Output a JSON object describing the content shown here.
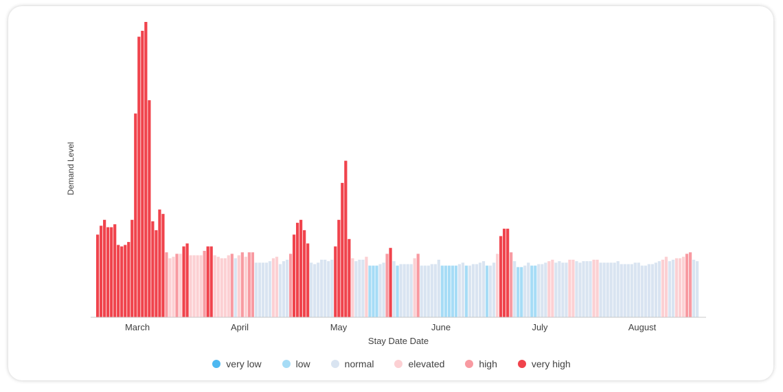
{
  "chart_data": {
    "type": "bar",
    "title": "",
    "xlabel": "Stay Date Date",
    "ylabel": "Demand Level",
    "x_tick_labels": [
      "March",
      "April",
      "May",
      "June",
      "July",
      "August"
    ],
    "ylim": [
      0,
      100
    ],
    "grid": false,
    "legend_position": "bottom",
    "series": [
      {
        "name": "very low",
        "color": "#4db8f0"
      },
      {
        "name": "low",
        "color": "#a6dcf6"
      },
      {
        "name": "normal",
        "color": "#d9e4f1"
      },
      {
        "name": "elevated",
        "color": "#fcd0d3"
      },
      {
        "name": "high",
        "color": "#f89aa1"
      },
      {
        "name": "very high",
        "color": "#f0434c"
      }
    ],
    "bars": [
      {
        "v": 28,
        "level": "very high"
      },
      {
        "v": 31,
        "level": "very high"
      },
      {
        "v": 33,
        "level": "very high"
      },
      {
        "v": 30.5,
        "level": "very high"
      },
      {
        "v": 30.5,
        "level": "very high"
      },
      {
        "v": 31.5,
        "level": "very high"
      },
      {
        "v": 24.5,
        "level": "very high"
      },
      {
        "v": 24,
        "level": "very high"
      },
      {
        "v": 24.5,
        "level": "very high"
      },
      {
        "v": 25.5,
        "level": "very high"
      },
      {
        "v": 33,
        "level": "very high"
      },
      {
        "v": 69,
        "level": "very high"
      },
      {
        "v": 95,
        "level": "very high"
      },
      {
        "v": 97,
        "level": "very high"
      },
      {
        "v": 100,
        "level": "very high"
      },
      {
        "v": 73.5,
        "level": "very high"
      },
      {
        "v": 32.5,
        "level": "very high"
      },
      {
        "v": 29.5,
        "level": "very high"
      },
      {
        "v": 36.5,
        "level": "very high"
      },
      {
        "v": 35,
        "level": "very high"
      },
      {
        "v": 22,
        "level": "high"
      },
      {
        "v": 20,
        "level": "elevated"
      },
      {
        "v": 20.5,
        "level": "elevated"
      },
      {
        "v": 21.5,
        "level": "high"
      },
      {
        "v": 21.5,
        "level": "elevated"
      },
      {
        "v": 24,
        "level": "very high"
      },
      {
        "v": 25,
        "level": "very high"
      },
      {
        "v": 21,
        "level": "elevated"
      },
      {
        "v": 21,
        "level": "elevated"
      },
      {
        "v": 21,
        "level": "elevated"
      },
      {
        "v": 21,
        "level": "elevated"
      },
      {
        "v": 22.5,
        "level": "high"
      },
      {
        "v": 24,
        "level": "very high"
      },
      {
        "v": 24,
        "level": "very high"
      },
      {
        "v": 21,
        "level": "elevated"
      },
      {
        "v": 20.5,
        "level": "elevated"
      },
      {
        "v": 20,
        "level": "elevated"
      },
      {
        "v": 20,
        "level": "elevated"
      },
      {
        "v": 21,
        "level": "elevated"
      },
      {
        "v": 21.5,
        "level": "high"
      },
      {
        "v": 20,
        "level": "normal"
      },
      {
        "v": 21,
        "level": "elevated"
      },
      {
        "v": 22,
        "level": "high"
      },
      {
        "v": 20.5,
        "level": "elevated"
      },
      {
        "v": 22,
        "level": "high"
      },
      {
        "v": 22,
        "level": "high"
      },
      {
        "v": 18.5,
        "level": "normal"
      },
      {
        "v": 18.5,
        "level": "normal"
      },
      {
        "v": 18.5,
        "level": "normal"
      },
      {
        "v": 18.5,
        "level": "normal"
      },
      {
        "v": 19,
        "level": "normal"
      },
      {
        "v": 20,
        "level": "elevated"
      },
      {
        "v": 20.5,
        "level": "elevated"
      },
      {
        "v": 18,
        "level": "normal"
      },
      {
        "v": 19,
        "level": "normal"
      },
      {
        "v": 19.5,
        "level": "normal"
      },
      {
        "v": 21.5,
        "level": "high"
      },
      {
        "v": 28,
        "level": "very high"
      },
      {
        "v": 32,
        "level": "very high"
      },
      {
        "v": 33,
        "level": "very high"
      },
      {
        "v": 29.5,
        "level": "very high"
      },
      {
        "v": 25,
        "level": "very high"
      },
      {
        "v": 18.5,
        "level": "normal"
      },
      {
        "v": 18,
        "level": "normal"
      },
      {
        "v": 18.5,
        "level": "normal"
      },
      {
        "v": 19.5,
        "level": "normal"
      },
      {
        "v": 19.5,
        "level": "normal"
      },
      {
        "v": 19,
        "level": "normal"
      },
      {
        "v": 19.5,
        "level": "normal"
      },
      {
        "v": 24,
        "level": "very high"
      },
      {
        "v": 33,
        "level": "very high"
      },
      {
        "v": 45.5,
        "level": "very high"
      },
      {
        "v": 53,
        "level": "very high"
      },
      {
        "v": 26.5,
        "level": "very high"
      },
      {
        "v": 20,
        "level": "elevated"
      },
      {
        "v": 19,
        "level": "normal"
      },
      {
        "v": 19.5,
        "level": "normal"
      },
      {
        "v": 19.5,
        "level": "normal"
      },
      {
        "v": 20.5,
        "level": "elevated"
      },
      {
        "v": 17.5,
        "level": "low"
      },
      {
        "v": 17.5,
        "level": "low"
      },
      {
        "v": 17.5,
        "level": "low"
      },
      {
        "v": 18,
        "level": "normal"
      },
      {
        "v": 18.5,
        "level": "normal"
      },
      {
        "v": 21.5,
        "level": "high"
      },
      {
        "v": 23.5,
        "level": "very high"
      },
      {
        "v": 19,
        "level": "normal"
      },
      {
        "v": 17.5,
        "level": "low"
      },
      {
        "v": 18,
        "level": "normal"
      },
      {
        "v": 18,
        "level": "normal"
      },
      {
        "v": 18,
        "level": "normal"
      },
      {
        "v": 18,
        "level": "normal"
      },
      {
        "v": 20,
        "level": "elevated"
      },
      {
        "v": 21.5,
        "level": "high"
      },
      {
        "v": 17.5,
        "level": "normal"
      },
      {
        "v": 17.5,
        "level": "normal"
      },
      {
        "v": 17.5,
        "level": "normal"
      },
      {
        "v": 18,
        "level": "normal"
      },
      {
        "v": 18,
        "level": "normal"
      },
      {
        "v": 19.5,
        "level": "normal"
      },
      {
        "v": 17.5,
        "level": "low"
      },
      {
        "v": 17.5,
        "level": "low"
      },
      {
        "v": 17.5,
        "level": "low"
      },
      {
        "v": 17.5,
        "level": "low"
      },
      {
        "v": 17.5,
        "level": "low"
      },
      {
        "v": 18,
        "level": "normal"
      },
      {
        "v": 18.5,
        "level": "normal"
      },
      {
        "v": 17.5,
        "level": "low"
      },
      {
        "v": 17.5,
        "level": "normal"
      },
      {
        "v": 18,
        "level": "normal"
      },
      {
        "v": 18,
        "level": "normal"
      },
      {
        "v": 18.5,
        "level": "normal"
      },
      {
        "v": 19,
        "level": "normal"
      },
      {
        "v": 17.5,
        "level": "low"
      },
      {
        "v": 17.5,
        "level": "normal"
      },
      {
        "v": 18.5,
        "level": "normal"
      },
      {
        "v": 21.5,
        "level": "elevated"
      },
      {
        "v": 27.5,
        "level": "very high"
      },
      {
        "v": 30,
        "level": "very high"
      },
      {
        "v": 30,
        "level": "very high"
      },
      {
        "v": 22,
        "level": "high"
      },
      {
        "v": 19,
        "level": "normal"
      },
      {
        "v": 17,
        "level": "low"
      },
      {
        "v": 17,
        "level": "low"
      },
      {
        "v": 17.5,
        "level": "normal"
      },
      {
        "v": 18.5,
        "level": "normal"
      },
      {
        "v": 17.5,
        "level": "low"
      },
      {
        "v": 17.5,
        "level": "low"
      },
      {
        "v": 18,
        "level": "normal"
      },
      {
        "v": 18,
        "level": "normal"
      },
      {
        "v": 18.5,
        "level": "normal"
      },
      {
        "v": 19,
        "level": "elevated"
      },
      {
        "v": 19.5,
        "level": "elevated"
      },
      {
        "v": 18.5,
        "level": "normal"
      },
      {
        "v": 19,
        "level": "normal"
      },
      {
        "v": 18.5,
        "level": "normal"
      },
      {
        "v": 18.5,
        "level": "normal"
      },
      {
        "v": 19.5,
        "level": "elevated"
      },
      {
        "v": 19.5,
        "level": "elevated"
      },
      {
        "v": 19,
        "level": "normal"
      },
      {
        "v": 18.5,
        "level": "normal"
      },
      {
        "v": 19,
        "level": "normal"
      },
      {
        "v": 19,
        "level": "normal"
      },
      {
        "v": 19,
        "level": "normal"
      },
      {
        "v": 19.5,
        "level": "elevated"
      },
      {
        "v": 19.5,
        "level": "elevated"
      },
      {
        "v": 18.5,
        "level": "normal"
      },
      {
        "v": 18.5,
        "level": "normal"
      },
      {
        "v": 18.5,
        "level": "normal"
      },
      {
        "v": 18.5,
        "level": "normal"
      },
      {
        "v": 18.5,
        "level": "normal"
      },
      {
        "v": 19,
        "level": "normal"
      },
      {
        "v": 18,
        "level": "normal"
      },
      {
        "v": 18,
        "level": "normal"
      },
      {
        "v": 18,
        "level": "normal"
      },
      {
        "v": 18,
        "level": "normal"
      },
      {
        "v": 18.5,
        "level": "normal"
      },
      {
        "v": 18.5,
        "level": "normal"
      },
      {
        "v": 17.5,
        "level": "normal"
      },
      {
        "v": 17.5,
        "level": "normal"
      },
      {
        "v": 18,
        "level": "normal"
      },
      {
        "v": 18,
        "level": "normal"
      },
      {
        "v": 18.5,
        "level": "normal"
      },
      {
        "v": 19,
        "level": "normal"
      },
      {
        "v": 19.5,
        "level": "elevated"
      },
      {
        "v": 20.5,
        "level": "elevated"
      },
      {
        "v": 19,
        "level": "normal"
      },
      {
        "v": 19.5,
        "level": "normal"
      },
      {
        "v": 20,
        "level": "elevated"
      },
      {
        "v": 20,
        "level": "elevated"
      },
      {
        "v": 20.5,
        "level": "elevated"
      },
      {
        "v": 21.5,
        "level": "high"
      },
      {
        "v": 22,
        "level": "high"
      },
      {
        "v": 19.5,
        "level": "normal"
      },
      {
        "v": 19,
        "level": "normal"
      }
    ]
  },
  "legend": {
    "items": [
      {
        "label": "very low",
        "color": "#4db8f0"
      },
      {
        "label": "low",
        "color": "#a6dcf6"
      },
      {
        "label": "normal",
        "color": "#d9e4f1"
      },
      {
        "label": "elevated",
        "color": "#fcd0d3"
      },
      {
        "label": "high",
        "color": "#f89aa1"
      },
      {
        "label": "very high",
        "color": "#f0434c"
      }
    ]
  }
}
